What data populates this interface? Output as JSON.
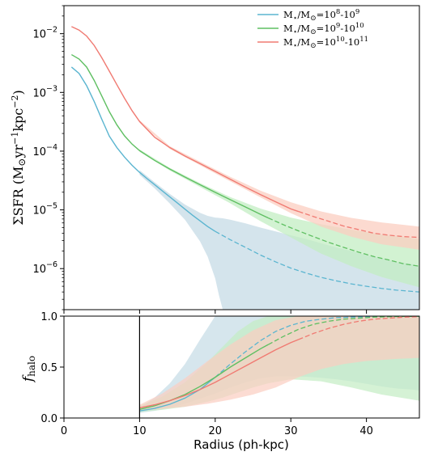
{
  "chart_data": [
    {
      "type": "line",
      "panel": "top",
      "ylabel": "ΣSFR (M⊙yr⁻¹kpc⁻²)",
      "ylabel_parts": {
        "main": "ΣSFR (M",
        "sun": "⊙",
        "mid": "yr",
        "exp1": "−1",
        "mid2": "kpc",
        "exp2": "−2",
        "close": ")"
      },
      "yscale": "log",
      "ylim": [
        2e-07,
        0.03
      ],
      "xlim": [
        0,
        47
      ],
      "y_ticks": [
        {
          "value": 0.01,
          "base": "10",
          "exp": "−2"
        },
        {
          "value": 0.001,
          "base": "10",
          "exp": "−3"
        },
        {
          "value": 0.0001,
          "base": "10",
          "exp": "−4"
        },
        {
          "value": 1e-05,
          "base": "10",
          "exp": "−5"
        },
        {
          "value": 1e-06,
          "base": "10",
          "exp": "−6"
        }
      ],
      "legend": {
        "position": "top-right"
      },
      "series": [
        {
          "name": "M⋆/M⊙=10⁸-10⁹",
          "legend_parts": {
            "a": "M",
            "star": "⋆",
            "b": "/M",
            "sun": "⊙",
            "c": "=10",
            "e1": "8",
            "d": "-10",
            "e2": "9"
          },
          "color": "#5bb5d0",
          "band_color": "#c5dbe6",
          "solid_x": [
            1,
            2,
            3,
            4,
            5,
            6,
            7,
            8,
            9,
            10,
            11,
            12,
            13,
            14,
            15,
            16,
            17,
            18,
            19,
            20
          ],
          "solid_y": [
            0.0027,
            0.0021,
            0.0013,
            0.0007,
            0.00035,
            0.00018,
            0.000115,
            7.95e-05,
            5.75e-05,
            4.35e-05,
            3.4e-05,
            2.68e-05,
            2.11e-05,
            1.66e-05,
            1.31e-05,
            1.03e-05,
            8.1e-06,
            6.5e-06,
            5.2e-06,
            4.3e-06
          ],
          "dashed_x": [
            20,
            22,
            24,
            26,
            28,
            30,
            32,
            34,
            36,
            38,
            40,
            42,
            44,
            46,
            47
          ],
          "dashed_y": [
            4.3e-06,
            3.1e-06,
            2.3e-06,
            1.7e-06,
            1.3e-06,
            1.02e-06,
            8.4e-07,
            7.1e-07,
            6.2e-07,
            5.5e-07,
            5e-07,
            4.6e-07,
            4.3e-07,
            4.1e-07,
            4e-07
          ],
          "band_x": [
            10,
            12,
            14,
            16,
            18,
            19,
            20,
            20.5,
            21,
            22,
            24,
            26,
            28,
            30,
            32,
            34,
            36,
            38,
            40,
            42,
            44,
            46,
            47
          ],
          "band_hi": [
            4.75e-05,
            2.95e-05,
            1.87e-05,
            1.23e-05,
            8.9e-06,
            7.9e-06,
            7.4e-06,
            7.3e-06,
            7.2e-06,
            6.8e-06,
            5.9e-06,
            5e-06,
            4.3e-06,
            3.7e-06,
            3.2e-06,
            2.7e-06,
            2.3e-06,
            2e-06,
            1.7e-06,
            1.5e-06,
            1.3e-06,
            1.2e-06,
            1.1e-06
          ],
          "band_lo": [
            3.95e-05,
            2.32e-05,
            1.28e-05,
            6.8e-06,
            2.9e-06,
            1.6e-06,
            6.8e-07,
            3.5e-07,
            2e-07,
            2e-07,
            2e-07,
            2e-07,
            2e-07,
            2e-07,
            2e-07,
            2e-07,
            2e-07,
            2e-07,
            2e-07,
            2e-07,
            2e-07,
            2e-07,
            2e-07
          ]
        },
        {
          "name": "M⋆/M⊙=10⁹-10¹⁰",
          "legend_parts": {
            "a": "M",
            "star": "⋆",
            "b": "/M",
            "sun": "⊙",
            "c": "=10",
            "e1": "9",
            "d": "-10",
            "e2": "10"
          },
          "color": "#5fbf62",
          "band_color": "#c3edc3",
          "solid_x": [
            1,
            2,
            3,
            4,
            5,
            6,
            7,
            8,
            9,
            10,
            12,
            14,
            16,
            18,
            20,
            22,
            24,
            26,
            27
          ],
          "solid_y": [
            0.0044,
            0.0037,
            0.0027,
            0.0016,
            0.00087,
            0.00047,
            0.00028,
            0.000183,
            0.000132,
            0.000102,
            6.95e-05,
            4.95e-05,
            3.62e-05,
            2.68e-05,
            1.99e-05,
            1.49e-05,
            1.12e-05,
            8.4e-06,
            7.3e-06
          ],
          "dashed_x": [
            27,
            29,
            31,
            33,
            35,
            37,
            39,
            41,
            43,
            45,
            47
          ],
          "dashed_y": [
            7.3e-06,
            5.6e-06,
            4.4e-06,
            3.5e-06,
            2.8e-06,
            2.3e-06,
            1.9e-06,
            1.6e-06,
            1.4e-06,
            1.2e-06,
            1.1e-06
          ],
          "band_x": [
            10,
            14,
            18,
            22,
            26,
            30,
            34,
            38,
            42,
            47
          ],
          "band_hi": [
            0.000107,
            5.2e-05,
            2.85e-05,
            1.65e-05,
            1.05e-05,
            7.4e-06,
            5.7e-06,
            4.6e-06,
            3.8e-06,
            3.2e-06
          ],
          "band_lo": [
            9.75e-05,
            4.66e-05,
            2.45e-05,
            1.29e-05,
            6.4e-06,
            3.4e-06,
            1.8e-06,
            1.1e-06,
            7.2e-07,
            4.8e-07
          ]
        },
        {
          "name": "M⋆/M⊙=10¹⁰-10¹¹",
          "legend_parts": {
            "a": "M",
            "star": "⋆",
            "b": "/M",
            "sun": "⊙",
            "c": "=10",
            "e1": "10",
            "d": "-10",
            "e2": "11"
          },
          "color": "#f07a72",
          "band_color": "#fbcdc0",
          "solid_x": [
            1,
            2,
            3,
            4,
            5,
            6,
            7,
            8,
            9,
            10,
            12,
            14,
            16,
            18,
            20,
            22,
            24,
            26,
            28,
            30,
            31
          ],
          "solid_y": [
            0.0132,
            0.0115,
            0.0091,
            0.0063,
            0.0039,
            0.0023,
            0.00135,
            0.0008,
            0.00049,
            0.00032,
            0.000172,
            0.000115,
            8.25e-05,
            6.13e-05,
            4.52e-05,
            3.32e-05,
            2.44e-05,
            1.82e-05,
            1.37e-05,
            1.04e-05,
            9.4e-06
          ],
          "dashed_x": [
            31,
            33,
            35,
            37,
            39,
            41,
            43,
            45,
            47
          ],
          "dashed_y": [
            9.4e-06,
            7.7e-06,
            6.4e-06,
            5.3e-06,
            4.6e-06,
            4e-06,
            3.7e-06,
            3.5e-06,
            3.4e-06
          ],
          "band_x": [
            10,
            14,
            18,
            22,
            26,
            30,
            34,
            38,
            42,
            47
          ],
          "band_hi": [
            0.000335,
            0.000121,
            6.6e-05,
            3.65e-05,
            2.12e-05,
            1.35e-05,
            9.4e-06,
            7.3e-06,
            6.1e-06,
            5.2e-06
          ],
          "band_lo": [
            0.000305,
            0.000109,
            5.75e-05,
            3.05e-05,
            1.63e-05,
            8.8e-06,
            5.2e-06,
            3.5e-06,
            2.6e-06,
            2.1e-06
          ]
        }
      ]
    },
    {
      "type": "line",
      "panel": "bottom",
      "xlabel": "Radius (ph-kpc)",
      "ylabel": "fhalo",
      "ylabel_parts": {
        "f": "f",
        "sub": "halo"
      },
      "xlim": [
        0,
        47
      ],
      "ylim": [
        0.0,
        1.0
      ],
      "x_ticks": [
        "0",
        "10",
        "20",
        "30",
        "40"
      ],
      "x_tick_values": [
        0,
        10,
        20,
        30,
        40
      ],
      "y_ticks": [
        "0.0",
        "0.5",
        "1.0"
      ],
      "y_tick_values": [
        0.0,
        0.5,
        1.0
      ],
      "vline_x": 10,
      "series": [
        {
          "name": "M⋆/M⊙=10⁸-10⁹",
          "color": "#5bb5d0",
          "band_color": "#c5dbe6",
          "solid_x": [
            10,
            12,
            14,
            16,
            18,
            20
          ],
          "solid_y": [
            0.07,
            0.095,
            0.135,
            0.195,
            0.28,
            0.4
          ],
          "dashed_x": [
            20,
            22,
            24,
            26,
            28,
            30,
            32,
            34,
            36,
            38,
            40,
            42,
            44,
            46,
            47
          ],
          "dashed_y": [
            0.4,
            0.53,
            0.65,
            0.76,
            0.85,
            0.91,
            0.95,
            0.97,
            0.985,
            0.99,
            0.995,
            0.997,
            0.998,
            0.999,
            0.999
          ],
          "band_x": [
            10,
            12,
            14,
            16,
            18,
            20,
            21,
            22,
            24,
            26,
            28,
            30,
            32,
            34,
            36,
            38,
            40,
            42,
            44,
            46,
            47
          ],
          "band_hi": [
            0.1,
            0.2,
            0.34,
            0.53,
            0.77,
            1.0,
            1.0,
            1.0,
            1.0,
            1.0,
            1.0,
            1.0,
            1.0,
            1.0,
            1.0,
            1.0,
            1.0,
            1.0,
            1.0,
            1.0,
            1.0
          ],
          "band_lo": [
            0.05,
            0.07,
            0.1,
            0.14,
            0.19,
            0.24,
            0.27,
            0.3,
            0.35,
            0.39,
            0.41,
            0.41,
            0.405,
            0.395,
            0.38,
            0.36,
            0.335,
            0.31,
            0.29,
            0.28,
            0.27
          ]
        },
        {
          "name": "M⋆/M⊙=10⁹-10¹⁰",
          "color": "#5fbf62",
          "band_color": "#c3edc3",
          "solid_x": [
            10,
            12,
            14,
            16,
            18,
            20,
            22,
            24,
            26,
            27
          ],
          "solid_y": [
            0.085,
            0.12,
            0.17,
            0.23,
            0.31,
            0.4,
            0.5,
            0.59,
            0.68,
            0.72
          ],
          "dashed_x": [
            27,
            29,
            31,
            33,
            35,
            37,
            39,
            41,
            43,
            45,
            47
          ],
          "dashed_y": [
            0.72,
            0.8,
            0.87,
            0.92,
            0.95,
            0.97,
            0.98,
            0.99,
            0.994,
            0.997,
            0.998
          ],
          "band_x": [
            10,
            13,
            16,
            19,
            21,
            23,
            25,
            27,
            30,
            34,
            38,
            42,
            47
          ],
          "band_hi": [
            0.12,
            0.21,
            0.35,
            0.55,
            0.7,
            0.85,
            0.95,
            1.0,
            1.0,
            1.0,
            1.0,
            1.0,
            1.0
          ],
          "band_lo": [
            0.06,
            0.08,
            0.11,
            0.16,
            0.2,
            0.25,
            0.3,
            0.34,
            0.38,
            0.36,
            0.3,
            0.23,
            0.17
          ]
        },
        {
          "name": "M⋆/M⊙=10¹⁰-10¹¹",
          "color": "#f07a72",
          "band_color": "#fbcdc0",
          "solid_x": [
            10,
            12,
            14,
            16,
            18,
            20,
            22,
            24,
            26,
            28,
            30,
            31
          ],
          "solid_y": [
            0.1,
            0.13,
            0.17,
            0.22,
            0.28,
            0.35,
            0.43,
            0.51,
            0.59,
            0.67,
            0.74,
            0.77
          ],
          "dashed_x": [
            31,
            33,
            35,
            37,
            39,
            41,
            43,
            45,
            47
          ],
          "dashed_y": [
            0.77,
            0.83,
            0.88,
            0.92,
            0.95,
            0.97,
            0.98,
            0.99,
            0.995
          ],
          "band_x": [
            10,
            13,
            16,
            19,
            22,
            25,
            28,
            31,
            34,
            37,
            40,
            44,
            47
          ],
          "band_hi": [
            0.13,
            0.24,
            0.39,
            0.56,
            0.72,
            0.86,
            0.96,
            1.0,
            1.0,
            1.0,
            1.0,
            1.0,
            1.0
          ],
          "band_lo": [
            0.07,
            0.09,
            0.11,
            0.14,
            0.18,
            0.23,
            0.3,
            0.4,
            0.48,
            0.53,
            0.56,
            0.58,
            0.59
          ]
        }
      ]
    }
  ]
}
